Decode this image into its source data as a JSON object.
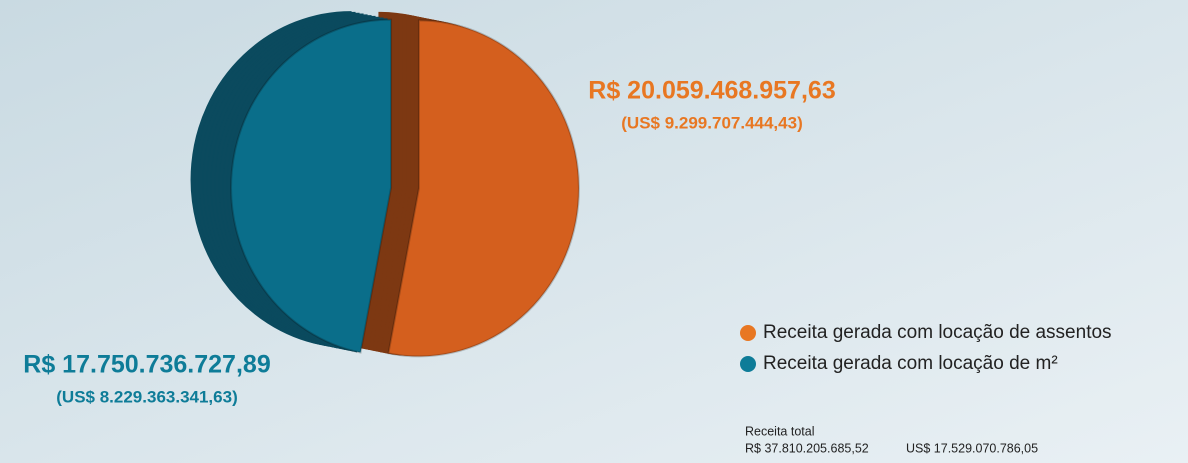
{
  "chart_data": {
    "type": "pie",
    "categories": [
      "Receita gerada com locação de assentos",
      "Receita gerada com locação de m²"
    ],
    "values": [
      20059468957.63,
      17750736727.89
    ],
    "value_labels": [
      "R$ 20.059.468.957,63",
      "R$ 17.750.736.727,89"
    ],
    "sub_labels": [
      "(US$ 9.299.707.444,43)",
      "(US$ 8.229.363.341,63)"
    ],
    "colors": [
      "#d45f1e",
      "#0a6e8a"
    ],
    "side_colors": [
      "#7d3812",
      "#0b4a5e"
    ],
    "label_colors": [
      "#e87722",
      "#0e7c98"
    ],
    "annotations": [
      "Receita total",
      "R$ 37.810.205.685,52",
      "US$ 17.529.070.786,05"
    ]
  }
}
